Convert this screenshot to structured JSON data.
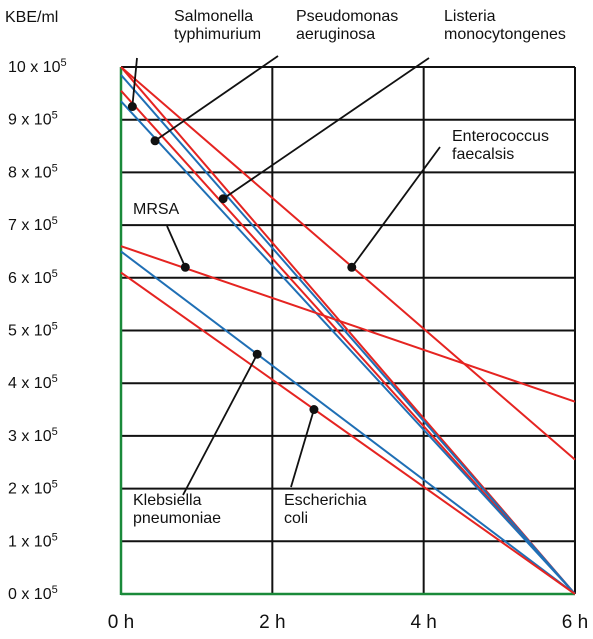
{
  "chart_data": {
    "type": "line",
    "ylabel": "KBE/ml",
    "x_unit": "h",
    "xlim": [
      0,
      6
    ],
    "ylim": [
      0,
      10
    ],
    "y_ticks": [
      {
        "value": 0,
        "mantissa": "0 x 10",
        "exp": "5"
      },
      {
        "value": 1,
        "mantissa": "1 x 10",
        "exp": "5"
      },
      {
        "value": 2,
        "mantissa": "2 x 10",
        "exp": "5"
      },
      {
        "value": 3,
        "mantissa": "3 x 10",
        "exp": "5"
      },
      {
        "value": 4,
        "mantissa": "4 x 10",
        "exp": "5"
      },
      {
        "value": 5,
        "mantissa": "5 x 10",
        "exp": "5"
      },
      {
        "value": 6,
        "mantissa": "6 x 10",
        "exp": "5"
      },
      {
        "value": 7,
        "mantissa": "7 x 10",
        "exp": "5"
      },
      {
        "value": 8,
        "mantissa": "8 x 10",
        "exp": "5"
      },
      {
        "value": 9,
        "mantissa": "9 x 10",
        "exp": "5"
      },
      {
        "value": 10,
        "mantissa": "10 x 10",
        "exp": "5"
      }
    ],
    "x_ticks": [
      {
        "value": 0,
        "label": "0 h"
      },
      {
        "value": 2,
        "label": "2 h"
      },
      {
        "value": 4,
        "label": "4 h"
      },
      {
        "value": 6,
        "label": "6 h"
      }
    ],
    "grid": true,
    "series": [
      {
        "name": "Salmonella typhimurium",
        "color": "#e52421",
        "x": [
          0,
          6
        ],
        "y": [
          10.0,
          0.0
        ]
      },
      {
        "name": "Pseudomonas aeruginosa",
        "color": "#e52421",
        "x": [
          0,
          6
        ],
        "y": [
          9.55,
          0.0
        ]
      },
      {
        "name": "Listeria monocytongenes",
        "color": "#1f6fb5",
        "x": [
          0,
          6
        ],
        "y": [
          9.85,
          0.0
        ]
      },
      {
        "name": "",
        "color": "#1f6fb5",
        "x": [
          0,
          6
        ],
        "y": [
          9.35,
          0.0
        ]
      },
      {
        "name": "Enterococcus faecalsis",
        "color": "#e52421",
        "x": [
          0,
          6
        ],
        "y": [
          10.0,
          2.55
        ]
      },
      {
        "name": "MRSA",
        "color": "#e52421",
        "x": [
          0,
          6
        ],
        "y": [
          6.6,
          3.65
        ]
      },
      {
        "name": "Klebsiella pneumoniae",
        "color": "#1f6fb5",
        "x": [
          0,
          6
        ],
        "y": [
          6.5,
          0.0
        ]
      },
      {
        "name": "Escherichia coli",
        "color": "#e52421",
        "x": [
          0,
          6
        ],
        "y": [
          6.1,
          0.0
        ]
      }
    ],
    "annotations": [
      {
        "lines": [
          "Salmonella",
          "typhimurium"
        ],
        "point": [
          0.15,
          9.25
        ]
      },
      {
        "lines": [
          "Pseudomonas",
          "aeruginosa"
        ],
        "point": [
          0.45,
          8.6
        ]
      },
      {
        "lines": [
          "Listeria",
          "monocytongenes"
        ],
        "point": [
          1.35,
          7.5
        ]
      },
      {
        "lines": [
          "Enterococcus",
          "faecalsis"
        ],
        "point": [
          3.05,
          6.2
        ]
      },
      {
        "lines": [
          "MRSA"
        ],
        "point": [
          0.85,
          6.2
        ]
      },
      {
        "lines": [
          "Klebsiella",
          "pneumoniae"
        ],
        "point": [
          1.8,
          4.55
        ]
      },
      {
        "lines": [
          "Escherichia",
          "coli"
        ],
        "point": [
          2.55,
          3.5
        ]
      }
    ],
    "colors": {
      "grid": "#111111",
      "axis": "#1a8a3a",
      "red": "#e52421",
      "blue": "#1f6fb5"
    }
  }
}
